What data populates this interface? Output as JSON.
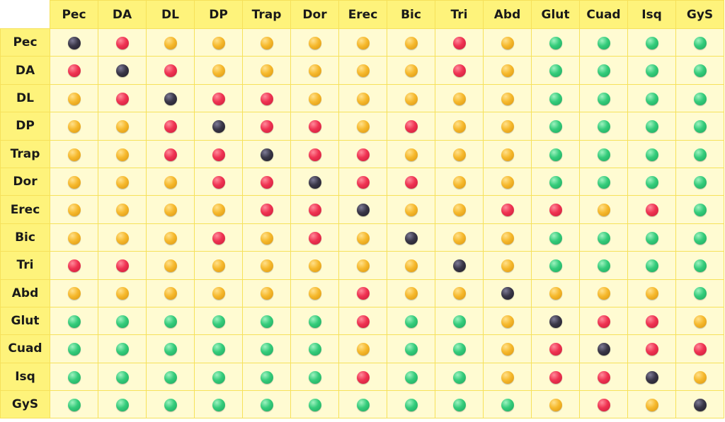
{
  "columns": [
    "Pec",
    "DA",
    "DL",
    "DP",
    "Trap",
    "Dor",
    "Erec",
    "Bic",
    "Tri",
    "Abd",
    "Glut",
    "Cuad",
    "Isq",
    "GyS"
  ],
  "rows": [
    {
      "label": "Pec",
      "cells": [
        "black",
        "red",
        "yellow",
        "yellow",
        "yellow",
        "yellow",
        "yellow",
        "yellow",
        "red",
        "yellow",
        "green",
        "green",
        "green",
        "green"
      ]
    },
    {
      "label": "DA",
      "cells": [
        "red",
        "black",
        "red",
        "yellow",
        "yellow",
        "yellow",
        "yellow",
        "yellow",
        "red",
        "yellow",
        "green",
        "green",
        "green",
        "green"
      ]
    },
    {
      "label": "DL",
      "cells": [
        "yellow",
        "red",
        "black",
        "red",
        "red",
        "yellow",
        "yellow",
        "yellow",
        "yellow",
        "yellow",
        "green",
        "green",
        "green",
        "green"
      ]
    },
    {
      "label": "DP",
      "cells": [
        "yellow",
        "yellow",
        "red",
        "black",
        "red",
        "red",
        "yellow",
        "red",
        "yellow",
        "yellow",
        "green",
        "green",
        "green",
        "green"
      ]
    },
    {
      "label": "Trap",
      "cells": [
        "yellow",
        "yellow",
        "red",
        "red",
        "black",
        "red",
        "red",
        "yellow",
        "yellow",
        "yellow",
        "green",
        "green",
        "green",
        "green"
      ]
    },
    {
      "label": "Dor",
      "cells": [
        "yellow",
        "yellow",
        "yellow",
        "red",
        "red",
        "black",
        "red",
        "red",
        "yellow",
        "yellow",
        "green",
        "green",
        "green",
        "green"
      ]
    },
    {
      "label": "Erec",
      "cells": [
        "yellow",
        "yellow",
        "yellow",
        "yellow",
        "red",
        "red",
        "black",
        "yellow",
        "yellow",
        "red",
        "red",
        "yellow",
        "red",
        "green"
      ]
    },
    {
      "label": "Bic",
      "cells": [
        "yellow",
        "yellow",
        "yellow",
        "red",
        "yellow",
        "red",
        "yellow",
        "black",
        "yellow",
        "yellow",
        "green",
        "green",
        "green",
        "green"
      ]
    },
    {
      "label": "Tri",
      "cells": [
        "red",
        "red",
        "yellow",
        "yellow",
        "yellow",
        "yellow",
        "yellow",
        "yellow",
        "black",
        "yellow",
        "green",
        "green",
        "green",
        "green"
      ]
    },
    {
      "label": "Abd",
      "cells": [
        "yellow",
        "yellow",
        "yellow",
        "yellow",
        "yellow",
        "yellow",
        "red",
        "yellow",
        "yellow",
        "black",
        "yellow",
        "yellow",
        "yellow",
        "green"
      ]
    },
    {
      "label": "Glut",
      "cells": [
        "green",
        "green",
        "green",
        "green",
        "green",
        "green",
        "red",
        "green",
        "green",
        "yellow",
        "black",
        "red",
        "red",
        "yellow"
      ]
    },
    {
      "label": "Cuad",
      "cells": [
        "green",
        "green",
        "green",
        "green",
        "green",
        "green",
        "yellow",
        "green",
        "green",
        "yellow",
        "red",
        "black",
        "red",
        "red"
      ]
    },
    {
      "label": "Isq",
      "cells": [
        "green",
        "green",
        "green",
        "green",
        "green",
        "green",
        "red",
        "green",
        "green",
        "yellow",
        "red",
        "red",
        "black",
        "yellow"
      ]
    },
    {
      "label": "GyS",
      "cells": [
        "green",
        "green",
        "green",
        "green",
        "green",
        "green",
        "green",
        "green",
        "green",
        "green",
        "yellow",
        "red",
        "yellow",
        "black"
      ]
    }
  ],
  "colors": {
    "red": "#ef3352",
    "yellow": "#f6b92d",
    "green": "#35cc7b",
    "black": "#3a3748",
    "header_bg": "#fef37b",
    "cell_bg": "#fffbd2",
    "border": "#f6e15a"
  }
}
